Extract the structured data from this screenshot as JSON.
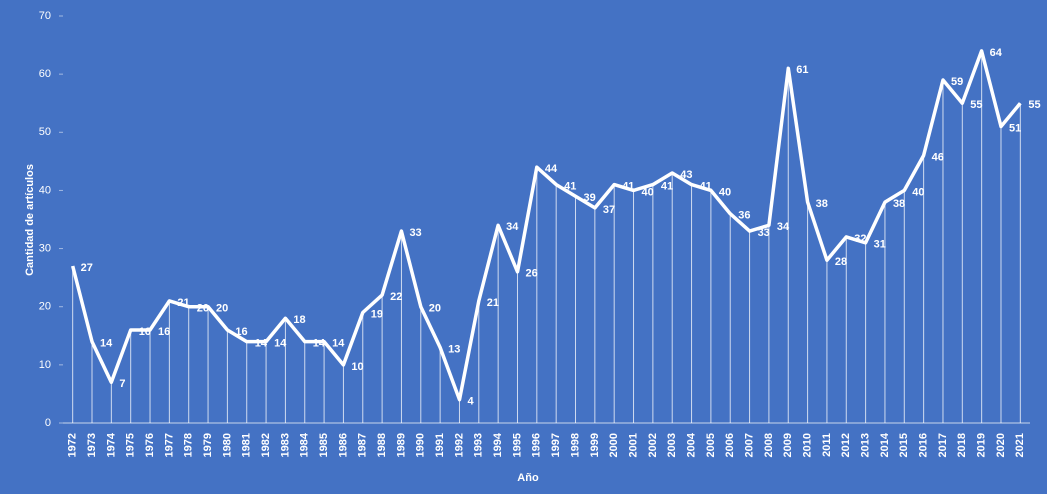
{
  "chart_data": {
    "type": "line",
    "x_label": "Año",
    "y_label": "Cantidad de artículos",
    "categories": [
      "1972",
      "1973",
      "1974",
      "1975",
      "1976",
      "1977",
      "1978",
      "1979",
      "1980",
      "1981",
      "1982",
      "1983",
      "1984",
      "1985",
      "1986",
      "1987",
      "1988",
      "1989",
      "1990",
      "1991",
      "1992",
      "1993",
      "1994",
      "1995",
      "1996",
      "1997",
      "1998",
      "1999",
      "2000",
      "2001",
      "2002",
      "2003",
      "2004",
      "2005",
      "2006",
      "2007",
      "2008",
      "2009",
      "2010",
      "2011",
      "2012",
      "2013",
      "2014",
      "2015",
      "2016",
      "2017",
      "2018",
      "2019",
      "2020",
      "2021"
    ],
    "values": [
      27,
      14,
      7,
      16,
      16,
      21,
      20,
      20,
      16,
      14,
      14,
      18,
      14,
      14,
      10,
      19,
      22,
      33,
      20,
      13,
      4,
      21,
      34,
      26,
      44,
      41,
      39,
      37,
      41,
      40,
      41,
      43,
      41,
      40,
      36,
      33,
      34,
      61,
      38,
      28,
      32,
      31,
      38,
      40,
      46,
      59,
      55,
      64,
      51,
      55
    ],
    "color": "#ffffff",
    "drop_lines": true,
    "ylim": [
      0,
      70
    ],
    "yticks": [
      0,
      10,
      20,
      30,
      40,
      50,
      60,
      70
    ],
    "grid": false
  }
}
